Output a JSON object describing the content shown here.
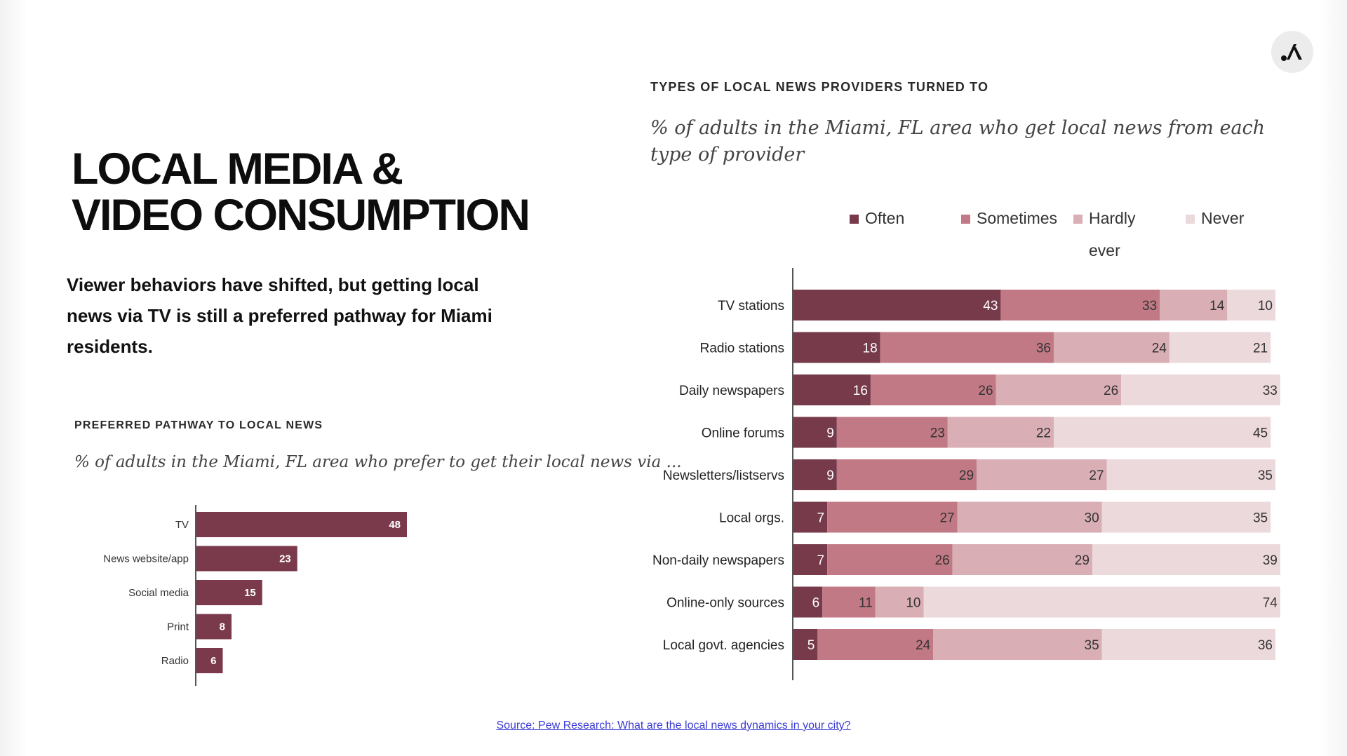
{
  "slide": {
    "title_line1": "LOCAL MEDIA  &",
    "title_line2": "VIDEO CONSUMPTION",
    "intro": "Viewer behaviors have shifted, but getting local news via TV is still a preferred pathway for Miami residents.",
    "source": "Source: Pew Research: What are the local news dynamics in your city?",
    "logo_icon": "stylized-a-logo-icon"
  },
  "chart_data": [
    {
      "type": "bar",
      "orientation": "horizontal",
      "title": "PREFERRED PATHWAY TO LOCAL NEWS",
      "subtitle": "% of adults in the Miami, FL area who prefer to get their local news via ...",
      "categories": [
        "TV",
        "News website/app",
        "Social media",
        "Print",
        "Radio"
      ],
      "values": [
        48,
        23,
        15,
        8,
        6
      ],
      "xlim": [
        0,
        100
      ],
      "color": "#7a3a4c",
      "data_labels": true,
      "grid": false
    },
    {
      "type": "bar",
      "orientation": "horizontal",
      "stacked": true,
      "title": "TYPES OF LOCAL NEWS PROVIDERS TURNED TO",
      "subtitle": "% of adults in the Miami, FL area who get local news from each type of provider",
      "categories": [
        "TV stations",
        "Radio stations",
        "Daily newspapers",
        "Online forums",
        "Newsletters/listservs",
        "Local orgs.",
        "Non-daily newspapers",
        "Online-only sources",
        "Local govt. agencies"
      ],
      "series": [
        {
          "name": "Often",
          "color": "#763a4a",
          "values": [
            43,
            18,
            16,
            9,
            9,
            7,
            7,
            6,
            5
          ]
        },
        {
          "name": "Sometimes",
          "color": "#c17a85",
          "values": [
            33,
            36,
            26,
            23,
            29,
            27,
            26,
            11,
            24
          ]
        },
        {
          "name": "Hardly ever",
          "color": "#d9aeb5",
          "values": [
            14,
            24,
            26,
            22,
            27,
            30,
            29,
            10,
            35
          ]
        },
        {
          "name": "Never",
          "color": "#ecd9dc",
          "values": [
            10,
            21,
            33,
            45,
            35,
            35,
            39,
            74,
            36
          ]
        }
      ],
      "xlim": [
        0,
        100
      ],
      "legend": "top",
      "data_labels": true,
      "grid": false
    }
  ]
}
